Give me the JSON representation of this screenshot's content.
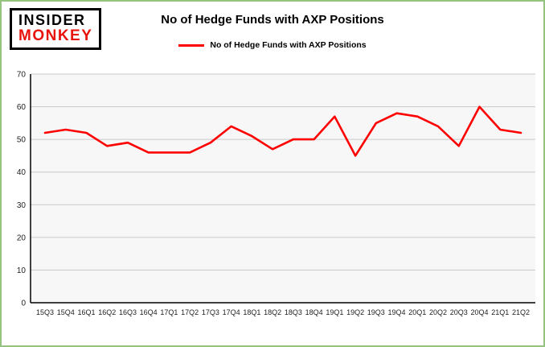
{
  "logo": {
    "line1": "INSIDER",
    "line2": "MONKEY"
  },
  "header": {
    "title": "No of Hedge Funds with AXP Positions"
  },
  "legend": {
    "label": "No of Hedge Funds with AXP Positions",
    "color": "#fe0000"
  },
  "chart_data": {
    "type": "line",
    "title": "No of Hedge Funds with AXP Positions",
    "categories": [
      "15Q3",
      "15Q4",
      "16Q1",
      "16Q2",
      "16Q3",
      "16Q4",
      "17Q1",
      "17Q2",
      "17Q3",
      "17Q4",
      "18Q1",
      "18Q2",
      "18Q3",
      "18Q4",
      "19Q1",
      "19Q2",
      "19Q3",
      "19Q4",
      "20Q1",
      "20Q2",
      "20Q3",
      "20Q4",
      "21Q1",
      "21Q2"
    ],
    "values": [
      52,
      53,
      52,
      48,
      49,
      46,
      46,
      46,
      49,
      54,
      51,
      47,
      50,
      50,
      57,
      45,
      55,
      58,
      57,
      54,
      48,
      60,
      53,
      52
    ],
    "series_color": "#fe0000",
    "xlabel": "",
    "ylabel": "",
    "ylim": [
      0,
      70
    ],
    "yticks": [
      0,
      10,
      20,
      30,
      40,
      50,
      60,
      70
    ],
    "grid": true,
    "gridline_color": "#c9c9c9",
    "axis_color": "#000000",
    "plot_background": "#f7f7f7",
    "legend_position": "top"
  }
}
